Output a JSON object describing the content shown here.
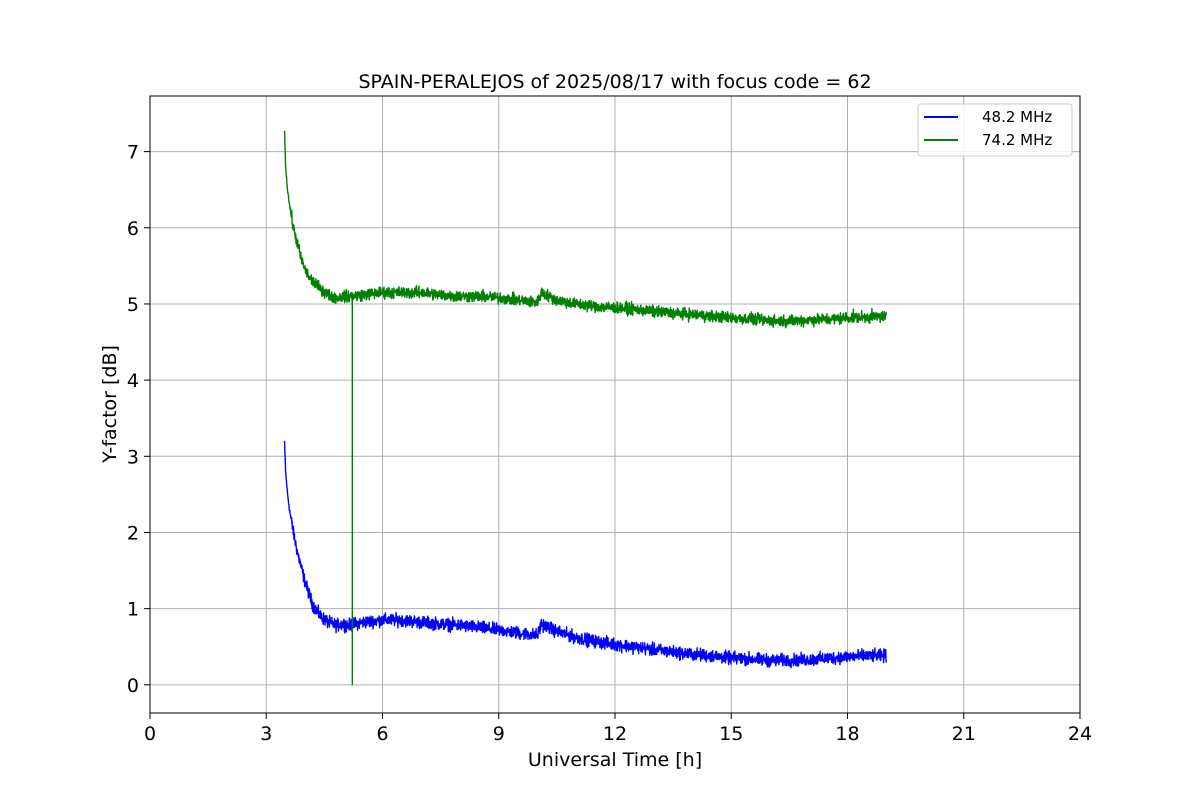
{
  "chart_data": {
    "type": "line",
    "title": "SPAIN-PERALEJOS of 2025/08/17 with focus code = 62",
    "xlabel": "Universal Time [h]",
    "ylabel": "Y-factor [dB]",
    "xlim": [
      0,
      24
    ],
    "ylim": [
      -0.37,
      7.73
    ],
    "xticks": [
      0,
      3,
      6,
      9,
      12,
      15,
      18,
      21,
      24
    ],
    "yticks": [
      0,
      1,
      2,
      3,
      4,
      5,
      6,
      7
    ],
    "grid": true,
    "legend_position": "upper right",
    "series": [
      {
        "name": "48.2 MHz",
        "color": "#0000ff",
        "noise_amplitude": 0.12,
        "x": [
          3.47,
          3.5,
          3.55,
          3.6,
          3.7,
          3.8,
          3.9,
          4.0,
          4.1,
          4.2,
          4.4,
          4.6,
          4.8,
          5.0,
          5.1,
          5.5,
          6.0,
          6.5,
          7.0,
          7.5,
          8.0,
          8.5,
          9.0,
          9.5,
          10.0,
          10.1,
          10.5,
          11.0,
          11.5,
          12.0,
          12.5,
          13.0,
          13.5,
          14.0,
          14.5,
          15.0,
          15.5,
          16.0,
          16.5,
          17.0,
          17.5,
          18.0,
          18.5,
          19.0
        ],
        "y": [
          3.2,
          2.8,
          2.5,
          2.3,
          2.0,
          1.75,
          1.55,
          1.35,
          1.2,
          1.05,
          0.9,
          0.82,
          0.78,
          0.8,
          0.78,
          0.82,
          0.85,
          0.85,
          0.82,
          0.8,
          0.78,
          0.75,
          0.72,
          0.68,
          0.65,
          0.8,
          0.7,
          0.62,
          0.57,
          0.53,
          0.5,
          0.46,
          0.43,
          0.4,
          0.38,
          0.35,
          0.34,
          0.32,
          0.32,
          0.33,
          0.35,
          0.37,
          0.38,
          0.38
        ]
      },
      {
        "name": "74.2 MHz",
        "color": "#008000",
        "noise_amplitude": 0.11,
        "spike": {
          "x": 5.22,
          "y_low": 0.0,
          "y_high": 5.0
        },
        "x": [
          3.47,
          3.5,
          3.55,
          3.6,
          3.7,
          3.8,
          3.9,
          4.0,
          4.1,
          4.2,
          4.4,
          4.6,
          4.8,
          5.0,
          5.1,
          5.5,
          6.0,
          6.5,
          7.0,
          7.5,
          8.0,
          8.5,
          9.0,
          9.5,
          10.0,
          10.1,
          10.5,
          11.0,
          11.5,
          12.0,
          12.5,
          13.0,
          13.5,
          14.0,
          14.5,
          15.0,
          15.5,
          16.0,
          16.5,
          17.0,
          17.5,
          18.0,
          18.5,
          19.0
        ],
        "y": [
          7.3,
          6.8,
          6.5,
          6.3,
          6.0,
          5.8,
          5.6,
          5.45,
          5.35,
          5.3,
          5.2,
          5.12,
          5.08,
          5.1,
          5.1,
          5.12,
          5.15,
          5.15,
          5.15,
          5.12,
          5.1,
          5.1,
          5.08,
          5.05,
          5.02,
          5.15,
          5.05,
          5.0,
          4.97,
          4.95,
          4.93,
          4.9,
          4.88,
          4.86,
          4.84,
          4.82,
          4.8,
          4.78,
          4.78,
          4.79,
          4.8,
          4.82,
          4.83,
          4.84
        ]
      }
    ]
  }
}
